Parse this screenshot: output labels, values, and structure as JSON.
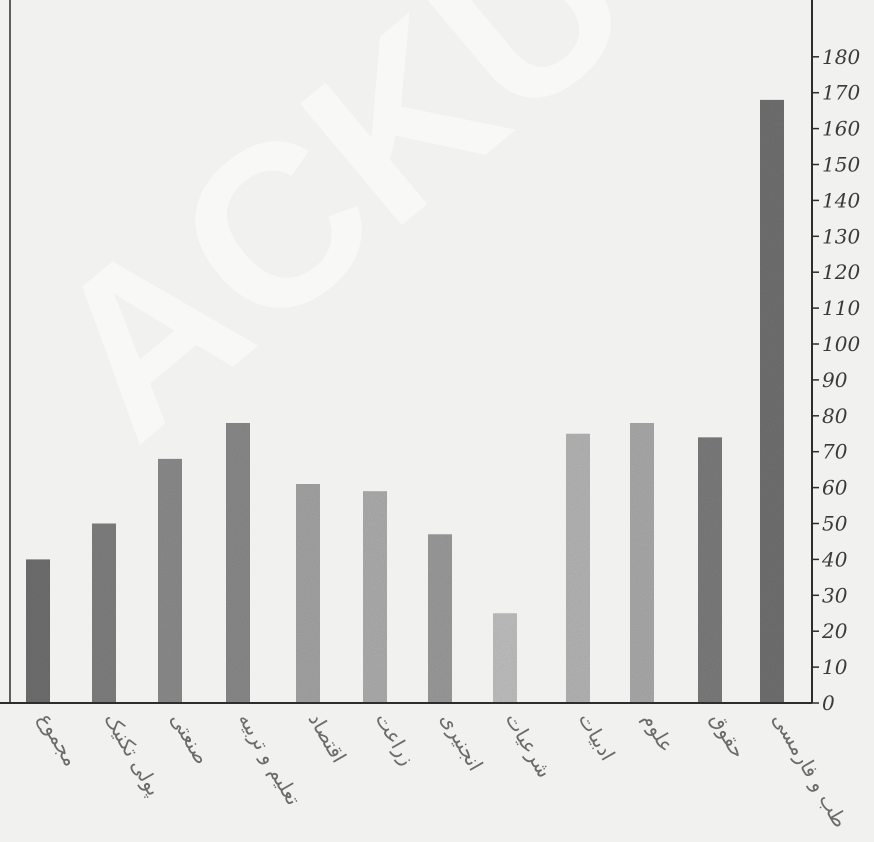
{
  "chart_data": {
    "type": "bar",
    "categories": [
      "طب و فارمسی",
      "حقوق",
      "علوم",
      "ادبیات",
      "شرعیات",
      "انجنیری",
      "زراعت",
      "اقتصاد",
      "تعلیم و تربیه",
      "صنعتی",
      "پولی تکنیک",
      "مجموع"
    ],
    "values": [
      168,
      74,
      78,
      75,
      25,
      47,
      59,
      61,
      78,
      68,
      50,
      40
    ],
    "bar_colors": [
      "#6f6f6f",
      "#7a7a7a",
      "#a8a8a8",
      "#b3b3b3",
      "#bdbdbd",
      "#999999",
      "#ababab",
      "#a2a2a2",
      "#888888",
      "#8a8a8a",
      "#7e7e7e",
      "#6e6e6e"
    ],
    "yticks": [
      0,
      10,
      20,
      30,
      40,
      50,
      60,
      70,
      80,
      90,
      100,
      110,
      120,
      130,
      140,
      150,
      160,
      170,
      180
    ],
    "ylim": [
      0,
      180
    ],
    "axis_side": "right",
    "grid": false,
    "title": "",
    "xlabel": "",
    "ylabel": ""
  },
  "watermark": {
    "text": "ACKU"
  }
}
